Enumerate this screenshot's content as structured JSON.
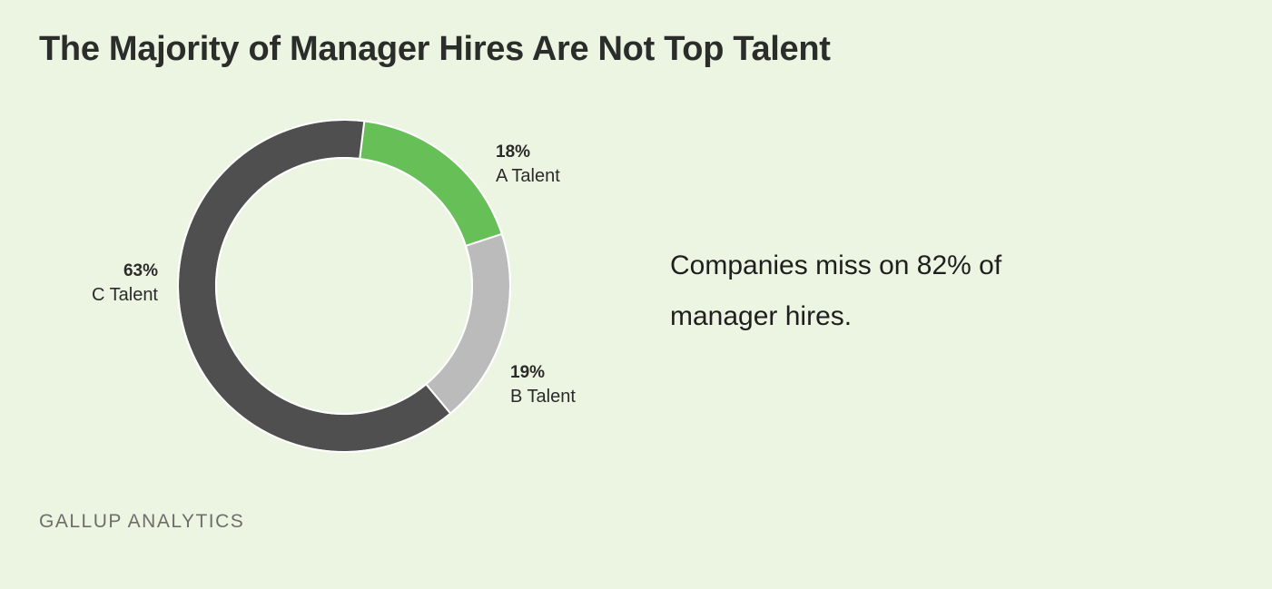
{
  "title": "The Majority of Manager Hires Are Not Top Talent",
  "callout": "Companies miss on 82% of manager hires.",
  "source": "GALLUP ANALYTICS",
  "chart_data": {
    "type": "pie",
    "variant": "donut",
    "title": "The Majority of Manager Hires Are Not Top Talent",
    "slices": [
      {
        "label": "A Talent",
        "value": 18,
        "display": "18%",
        "color": "#67bf58"
      },
      {
        "label": "B Talent",
        "value": 19,
        "display": "19%",
        "color": "#bbbbbb"
      },
      {
        "label": "C Talent",
        "value": 63,
        "display": "63%",
        "color": "#4f4f4f"
      }
    ]
  }
}
